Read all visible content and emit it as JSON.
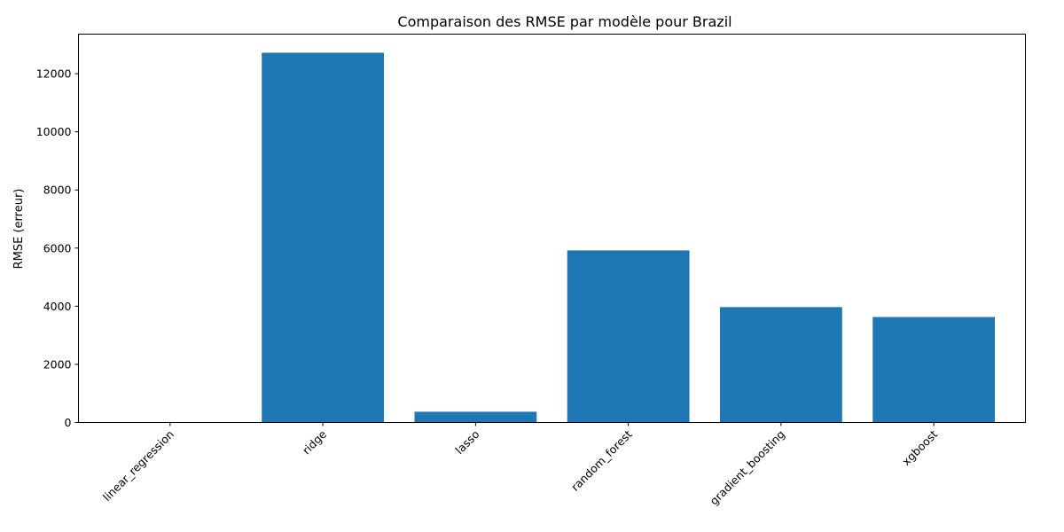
{
  "chart_data": {
    "type": "bar",
    "title": "Comparaison des RMSE par modèle pour Brazil",
    "xlabel": "",
    "ylabel": "RMSE (erreur)",
    "categories": [
      "linear_regression",
      "ridge",
      "lasso",
      "random_forest",
      "gradient_boosting",
      "xgboost"
    ],
    "values": [
      10,
      12720,
      370,
      5920,
      3970,
      3630
    ],
    "ylim": [
      0,
      13360
    ],
    "yticks": [
      0,
      2000,
      4000,
      6000,
      8000,
      10000,
      12000
    ],
    "ytick_labels": [
      "0",
      "2000",
      "4000",
      "6000",
      "8000",
      "10000",
      "12000"
    ],
    "bar_color": "#1f77b4",
    "grid": false,
    "legend": "none",
    "xtick_rotation": -45
  }
}
